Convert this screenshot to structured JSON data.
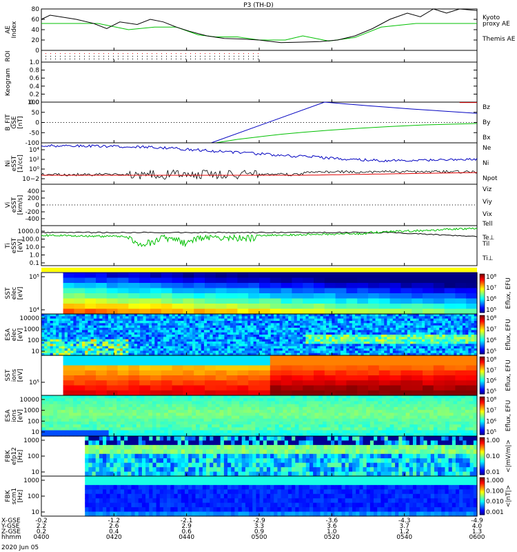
{
  "title": "P3 (TH-D)",
  "date_label": "2020 Jun 05",
  "colors": {
    "red": "#e00000",
    "green": "#00c000",
    "blue": "#0000c0",
    "black": "#000000",
    "yellow": "#ffff00"
  },
  "chart_data": [
    {
      "id": "ae",
      "type": "line",
      "ylabel": "AE Index",
      "ylim": [
        0,
        80
      ],
      "yticks": [
        "0",
        "20",
        "40",
        "60",
        "80"
      ],
      "series": [
        {
          "name": "Kyoto proxy AE",
          "color": "green",
          "x": [
            0,
            0.07,
            0.13,
            0.2,
            0.26,
            0.31,
            0.36,
            0.4,
            0.45,
            0.5,
            0.56,
            0.6,
            0.66,
            0.72,
            0.78,
            0.86,
            0.93,
            1
          ],
          "y": [
            52,
            52,
            52,
            40,
            45,
            45,
            30,
            26,
            26,
            20,
            20,
            28,
            18,
            25,
            45,
            52,
            52,
            52
          ]
        },
        {
          "name": "Themis AE",
          "color": "black",
          "x": [
            0,
            0.02,
            0.05,
            0.08,
            0.12,
            0.15,
            0.18,
            0.22,
            0.25,
            0.28,
            0.31,
            0.34,
            0.38,
            0.42,
            0.46,
            0.5,
            0.55,
            0.6,
            0.64,
            0.68,
            0.72,
            0.76,
            0.8,
            0.84,
            0.87,
            0.9,
            0.93,
            0.96,
            1
          ],
          "y": [
            60,
            68,
            64,
            60,
            52,
            42,
            55,
            50,
            60,
            55,
            45,
            37,
            28,
            23,
            22,
            20,
            15,
            16,
            17,
            20,
            28,
            42,
            60,
            72,
            65,
            80,
            72,
            80,
            77
          ]
        }
      ]
    },
    {
      "id": "roi",
      "type": "scatter",
      "ylabel": "ROI"
    },
    {
      "id": "keogram",
      "type": "line",
      "ylabel": "Keogram",
      "ylim": [
        0,
        1
      ],
      "yticks": [
        "0.0",
        "0.2",
        "0.4",
        "0.6",
        "0.8",
        "1.0"
      ]
    },
    {
      "id": "bfield",
      "type": "line",
      "ylabel": "B_FIT GSE [nT]",
      "ylim": [
        -100,
        100
      ],
      "yticks": [
        "-100",
        "-50",
        "0",
        "50",
        "100"
      ],
      "series": [
        {
          "name": "Bz",
          "color": "red",
          "x": [
            0.96,
            1
          ],
          "y": [
            98,
            98
          ]
        },
        {
          "name": "By",
          "color": "green",
          "x": [
            0.4,
            0.45,
            0.5,
            0.55,
            0.6,
            0.66,
            0.72,
            0.8,
            0.88,
            1
          ],
          "y": [
            -100,
            -83,
            -70,
            -58,
            -48,
            -38,
            -30,
            -20,
            -12,
            -5
          ]
        },
        {
          "name": "Bx",
          "color": "blue",
          "x": [
            0,
            0.39,
            0.65,
            0.75,
            0.85,
            1
          ],
          "y": [
            -100,
            -100,
            100,
            82,
            66,
            45
          ]
        }
      ]
    },
    {
      "id": "density",
      "type": "line",
      "ylabel": "Ni eSST [1/cc]",
      "yticks": [
        "10−2",
        "10⁰",
        "10²",
        "10⁴"
      ],
      "series": [
        {
          "name": "Ne",
          "color": "red"
        },
        {
          "name": "Ni",
          "color": "blue"
        },
        {
          "name": "Npot",
          "color": "blue"
        }
      ]
    },
    {
      "id": "velocity",
      "type": "line",
      "ylabel": "Vi eSST [km/s]",
      "ylim": [
        -600,
        600
      ],
      "yticks": [
        "-400",
        "-200",
        "0",
        "200",
        "400"
      ],
      "series": [
        {
          "name": "Viz",
          "color": "red"
        },
        {
          "name": "Viy",
          "color": "green"
        },
        {
          "name": "Vix",
          "color": "blue"
        }
      ]
    },
    {
      "id": "temperature",
      "type": "line",
      "ylabel": "Ti eSST [eV]",
      "yticks": [
        "0.1",
        "1.0",
        "10.0",
        "100.0",
        "1000.0"
      ],
      "series": [
        {
          "name": "Tell",
          "color": "black"
        },
        {
          "name": "Te⊥",
          "color": "red"
        },
        {
          "name": "Til",
          "color": "green"
        },
        {
          "name": "Ti⊥",
          "color": "blue"
        }
      ]
    },
    {
      "id": "sst_e",
      "type": "heatmap",
      "ylabel": "SST elec [eV]",
      "yticks": [
        "10⁴",
        "10⁵"
      ],
      "zlabel": "Eflux, EFU",
      "zticks": [
        "10⁵",
        "10⁶",
        "10⁷",
        "10⁸"
      ]
    },
    {
      "id": "esa_e",
      "type": "heatmap",
      "ylabel": "ESA elec [eV]",
      "yticks": [
        "10",
        "100",
        "1000",
        "10000"
      ],
      "zlabel": "Eflux, EFU",
      "zticks": [
        "10⁵",
        "10⁶",
        "10⁷",
        "10⁸"
      ]
    },
    {
      "id": "sst_i",
      "type": "heatmap",
      "ylabel": "SST ions [eV]",
      "yticks": [
        "10⁵"
      ],
      "zlabel": "Eflux, EFU",
      "zticks": [
        "10⁵",
        "10⁶",
        "10⁷",
        "10⁸"
      ]
    },
    {
      "id": "esa_i",
      "type": "heatmap",
      "ylabel": "ESA ions [eV]",
      "yticks": [
        "10",
        "100",
        "1000",
        "10000"
      ],
      "zlabel": "Eflux, EFU",
      "zticks": [
        "10⁵",
        "10⁶",
        "10⁷",
        "10⁸"
      ]
    },
    {
      "id": "fbk_e",
      "type": "heatmap",
      "ylabel": "FBK efp12 [Hz]",
      "yticks": [
        "10",
        "100",
        "1000"
      ],
      "zlabel": "<|mV/m|>",
      "zticks": [
        "0.01",
        "0.10",
        "1.00"
      ]
    },
    {
      "id": "fbk_b",
      "type": "heatmap",
      "ylabel": "FBK scm1 [Hz]",
      "yticks": [
        "10",
        "100",
        "1000"
      ],
      "zlabel": "<|nT|>",
      "zticks": [
        "0.001",
        "0.010",
        "0.100",
        "1.000"
      ]
    }
  ],
  "x_axis": {
    "row_labels": [
      "X-GSE",
      "Y-GSE",
      "Z-GSE",
      "hhmm"
    ],
    "ticks": [
      {
        "v": [
          "-0.2",
          "2.2",
          "0.2",
          "0400"
        ]
      },
      {
        "v": [
          "-1.2",
          "2.6",
          "0.4",
          "0420"
        ]
      },
      {
        "v": [
          "-2.1",
          "2.9",
          "0.6",
          "0440"
        ]
      },
      {
        "v": [
          "-2.9",
          "3.3",
          "0.9",
          "0500"
        ]
      },
      {
        "v": [
          "-3.6",
          "3.6",
          "1.0",
          "0520"
        ]
      },
      {
        "v": [
          "-4.3",
          "3.7",
          "1.2",
          "0540"
        ]
      },
      {
        "v": [
          "-4.9",
          "4.0",
          "1.3",
          "0600"
        ]
      }
    ]
  }
}
